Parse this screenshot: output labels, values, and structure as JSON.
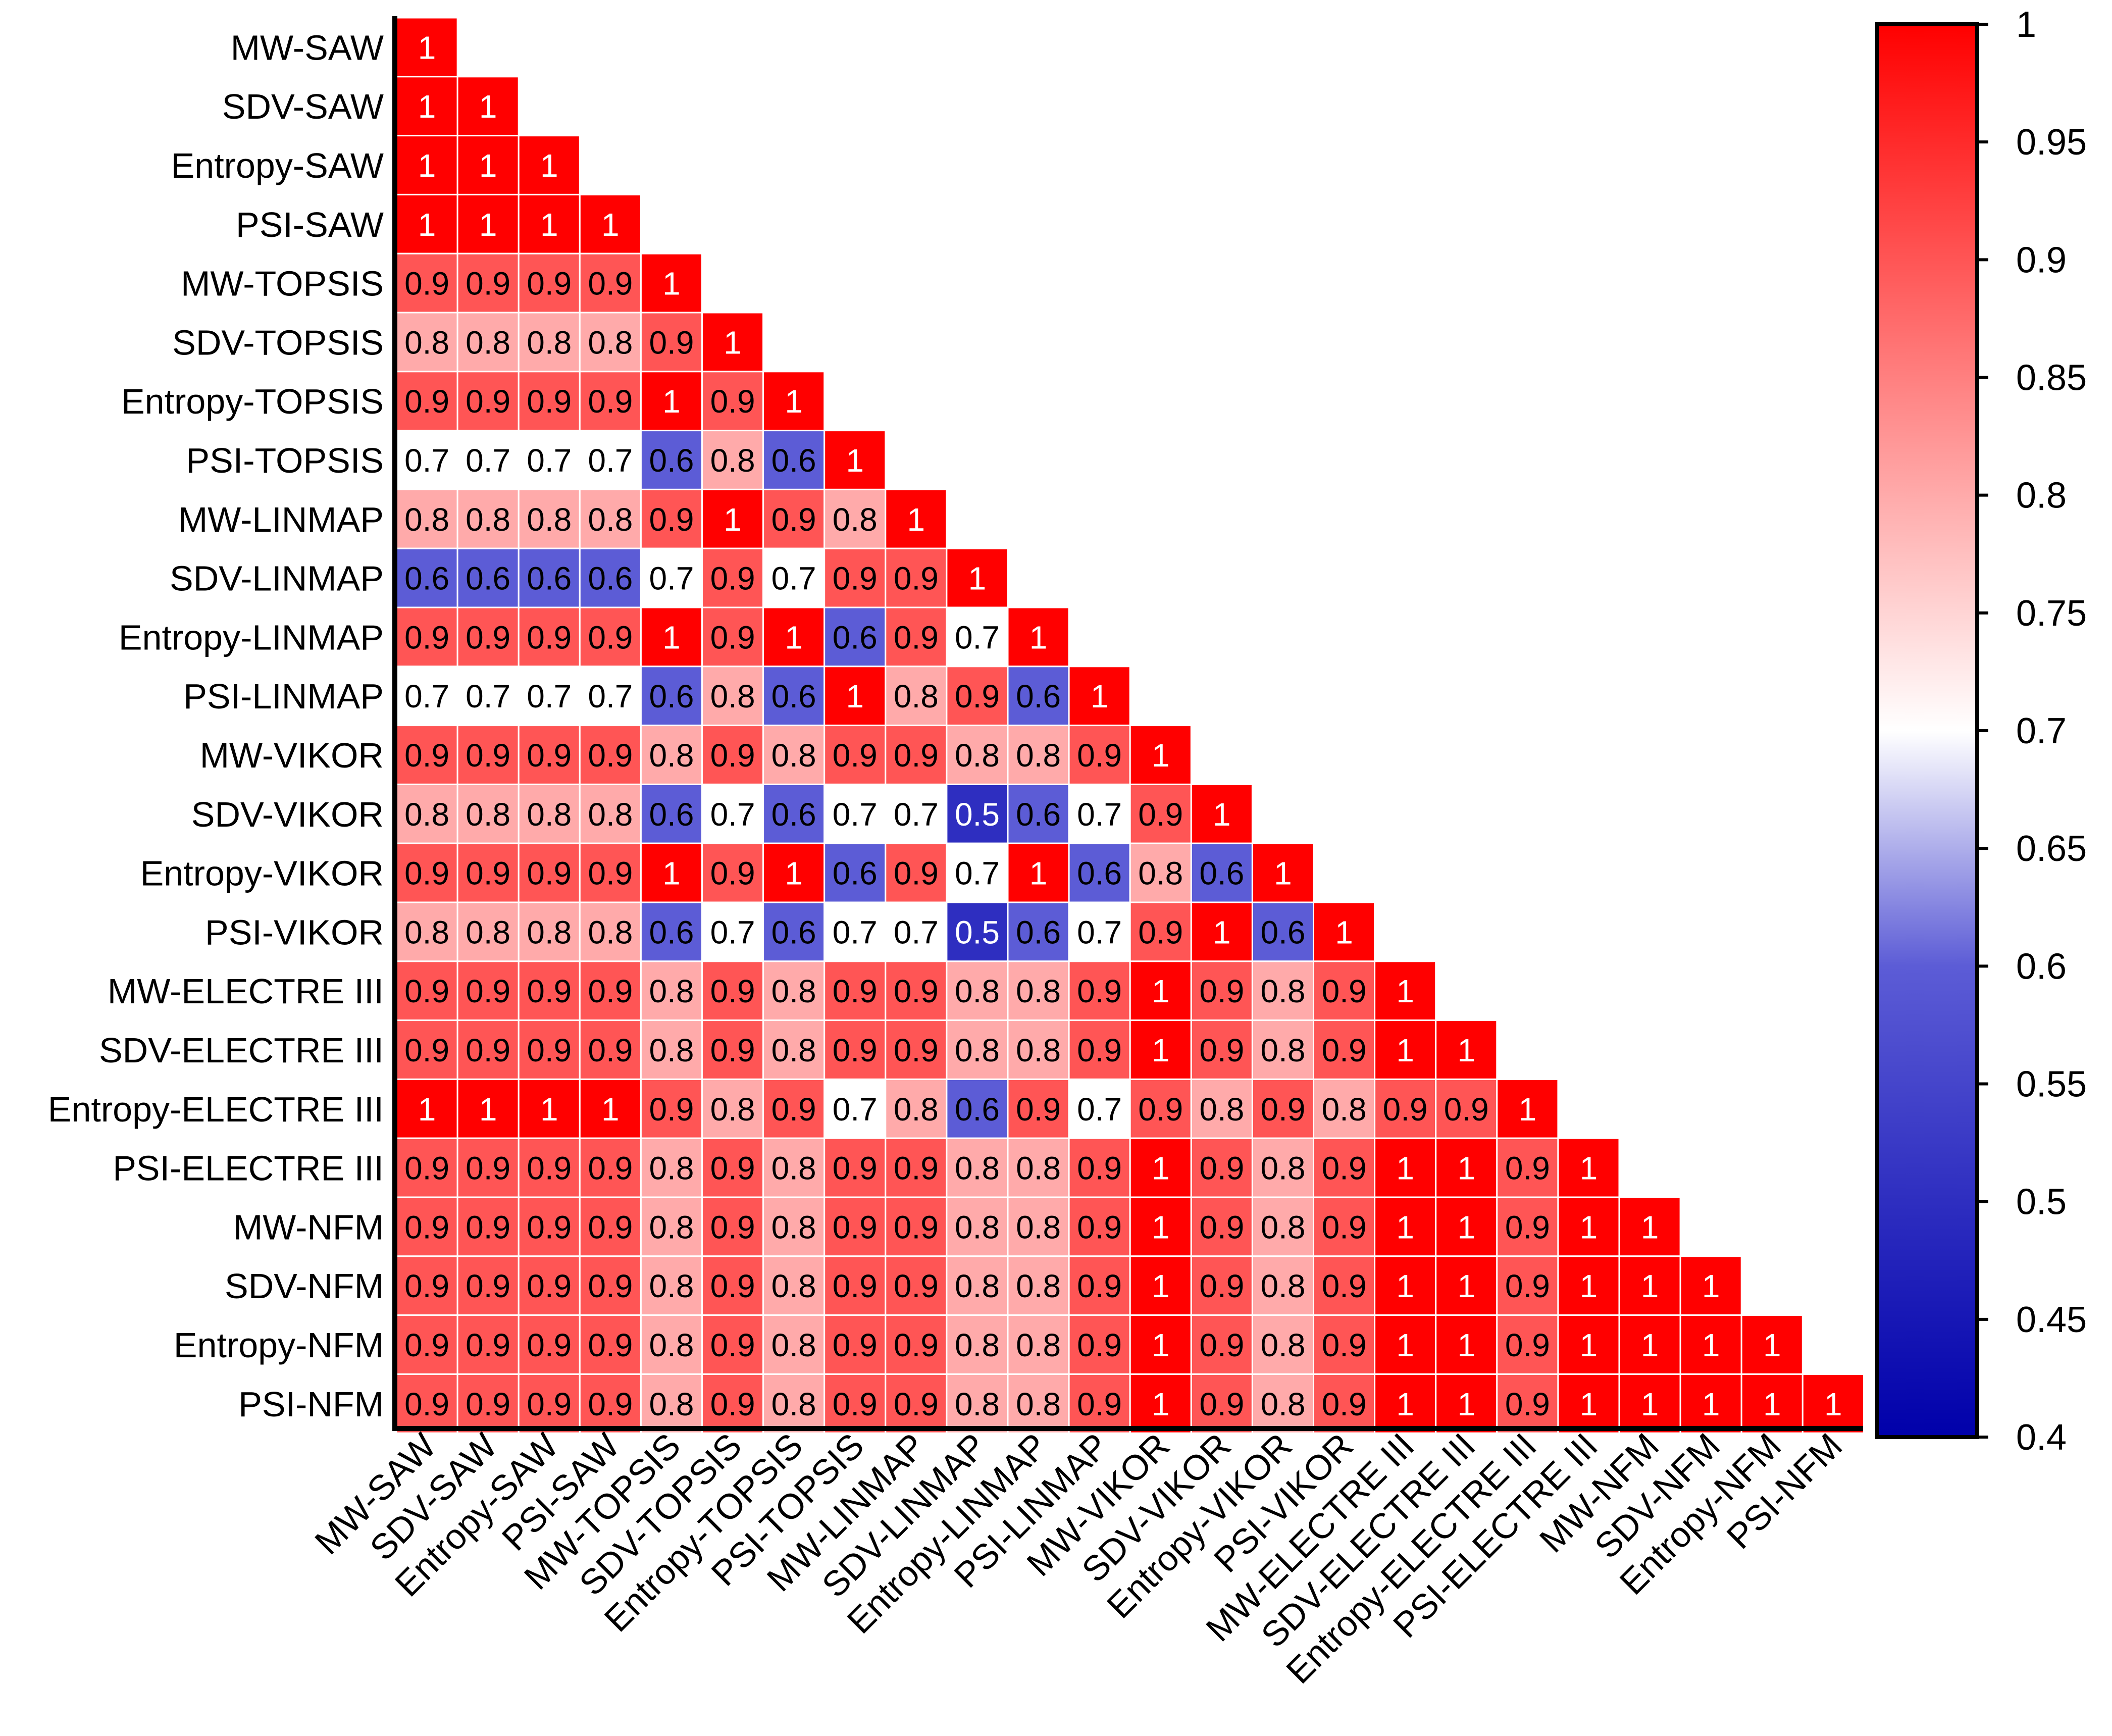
{
  "chart_data": {
    "type": "heatmap",
    "subtype": "lower-triangular correlation matrix",
    "labels": [
      "MW-SAW",
      "SDV-SAW",
      "Entropy-SAW",
      "PSI-SAW",
      "MW-TOPSIS",
      "SDV-TOPSIS",
      "Entropy-TOPSIS",
      "PSI-TOPSIS",
      "MW-LINMAP",
      "SDV-LINMAP",
      "Entropy-LINMAP",
      "PSI-LINMAP",
      "MW-VIKOR",
      "SDV-VIKOR",
      "Entropy-VIKOR",
      "PSI-VIKOR",
      "MW-ELECTRE III",
      "SDV-ELECTRE III",
      "Entropy-ELECTRE III",
      "PSI-ELECTRE III",
      "MW-NFM",
      "SDV-NFM",
      "Entropy-NFM",
      "PSI-NFM"
    ],
    "matrix": [
      [
        1
      ],
      [
        1,
        1
      ],
      [
        1,
        1,
        1
      ],
      [
        1,
        1,
        1,
        1
      ],
      [
        0.9,
        0.9,
        0.9,
        0.9,
        1
      ],
      [
        0.8,
        0.8,
        0.8,
        0.8,
        0.9,
        1
      ],
      [
        0.9,
        0.9,
        0.9,
        0.9,
        1,
        0.9,
        1
      ],
      [
        0.7,
        0.7,
        0.7,
        0.7,
        0.6,
        0.8,
        0.6,
        1
      ],
      [
        0.8,
        0.8,
        0.8,
        0.8,
        0.9,
        1,
        0.9,
        0.8,
        1
      ],
      [
        0.6,
        0.6,
        0.6,
        0.6,
        0.7,
        0.9,
        0.7,
        0.9,
        0.9,
        1
      ],
      [
        0.9,
        0.9,
        0.9,
        0.9,
        1,
        0.9,
        1,
        0.6,
        0.9,
        0.7,
        1
      ],
      [
        0.7,
        0.7,
        0.7,
        0.7,
        0.6,
        0.8,
        0.6,
        1,
        0.8,
        0.9,
        0.6,
        1
      ],
      [
        0.9,
        0.9,
        0.9,
        0.9,
        0.8,
        0.9,
        0.8,
        0.9,
        0.9,
        0.8,
        0.8,
        0.9,
        1
      ],
      [
        0.8,
        0.8,
        0.8,
        0.8,
        0.6,
        0.7,
        0.6,
        0.7,
        0.7,
        0.5,
        0.6,
        0.7,
        0.9,
        1
      ],
      [
        0.9,
        0.9,
        0.9,
        0.9,
        1,
        0.9,
        1,
        0.6,
        0.9,
        0.7,
        1,
        0.6,
        0.8,
        0.6,
        1
      ],
      [
        0.8,
        0.8,
        0.8,
        0.8,
        0.6,
        0.7,
        0.6,
        0.7,
        0.7,
        0.5,
        0.6,
        0.7,
        0.9,
        1,
        0.6,
        1
      ],
      [
        0.9,
        0.9,
        0.9,
        0.9,
        0.8,
        0.9,
        0.8,
        0.9,
        0.9,
        0.8,
        0.8,
        0.9,
        1,
        0.9,
        0.8,
        0.9,
        1
      ],
      [
        0.9,
        0.9,
        0.9,
        0.9,
        0.8,
        0.9,
        0.8,
        0.9,
        0.9,
        0.8,
        0.8,
        0.9,
        1,
        0.9,
        0.8,
        0.9,
        1,
        1
      ],
      [
        1,
        1,
        1,
        1,
        0.9,
        0.8,
        0.9,
        0.7,
        0.8,
        0.6,
        0.9,
        0.7,
        0.9,
        0.8,
        0.9,
        0.8,
        0.9,
        0.9,
        1
      ],
      [
        0.9,
        0.9,
        0.9,
        0.9,
        0.8,
        0.9,
        0.8,
        0.9,
        0.9,
        0.8,
        0.8,
        0.9,
        1,
        0.9,
        0.8,
        0.9,
        1,
        1,
        0.9,
        1
      ],
      [
        0.9,
        0.9,
        0.9,
        0.9,
        0.8,
        0.9,
        0.8,
        0.9,
        0.9,
        0.8,
        0.8,
        0.9,
        1,
        0.9,
        0.8,
        0.9,
        1,
        1,
        0.9,
        1,
        1
      ],
      [
        0.9,
        0.9,
        0.9,
        0.9,
        0.8,
        0.9,
        0.8,
        0.9,
        0.9,
        0.8,
        0.8,
        0.9,
        1,
        0.9,
        0.8,
        0.9,
        1,
        1,
        0.9,
        1,
        1,
        1
      ],
      [
        0.9,
        0.9,
        0.9,
        0.9,
        0.8,
        0.9,
        0.8,
        0.9,
        0.9,
        0.8,
        0.8,
        0.9,
        1,
        0.9,
        0.8,
        0.9,
        1,
        1,
        0.9,
        1,
        1,
        1,
        1
      ],
      [
        0.9,
        0.9,
        0.9,
        0.9,
        0.8,
        0.9,
        0.8,
        0.9,
        0.9,
        0.8,
        0.8,
        0.9,
        1,
        0.9,
        0.8,
        0.9,
        1,
        1,
        0.9,
        1,
        1,
        1,
        1,
        1
      ]
    ],
    "colorbar": {
      "range": [
        0.4,
        1
      ],
      "ticks": [
        1,
        0.95,
        0.9,
        0.85,
        0.8,
        0.75,
        0.7,
        0.65,
        0.6,
        0.55,
        0.5,
        0.45,
        0.4
      ],
      "colors": {
        "low": "#0000AA",
        "mid_low": "#5C5CD6",
        "mid": "#FFFFFF",
        "high": "#FF0000"
      }
    },
    "title": "",
    "xlabel": "",
    "ylabel": ""
  }
}
